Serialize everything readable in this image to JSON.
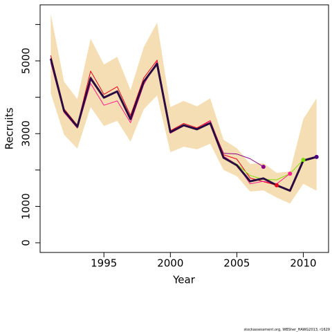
{
  "chart_data": {
    "type": "line",
    "x_label": "Year",
    "y_label": "Recruits",
    "caption": "stockassessment.org, WBSher_HAWG2013, r1629",
    "x": [
      1991,
      1992,
      1993,
      1994,
      1995,
      1996,
      1997,
      1998,
      1999,
      2000,
      2001,
      2002,
      2003,
      2004,
      2005,
      2006,
      2007,
      2008,
      2009,
      2010,
      2011
    ],
    "ci_color": "#f5deb3",
    "ci_upper": [
      6290,
      4430,
      3950,
      5610,
      4900,
      5110,
      4200,
      5380,
      6050,
      3730,
      3900,
      3750,
      3970,
      2830,
      2600,
      2170,
      2190,
      1920,
      1960,
      3400,
      3970
    ],
    "ci_lower": [
      4110,
      2970,
      2590,
      3730,
      3210,
      3350,
      2780,
      3670,
      4050,
      2490,
      2640,
      2570,
      2720,
      2000,
      1830,
      1410,
      1440,
      1240,
      1080,
      1620,
      1430
    ],
    "series": [
      {
        "color": "#8b008b",
        "width": 1,
        "values": [
          5080,
          3640,
          3200,
          4560,
          4000,
          4180,
          3410,
          4450,
          4940,
          3050,
          3240,
          3130,
          3310,
          2460,
          2440,
          2310,
          2090,
          null,
          null,
          null,
          null
        ]
      },
      {
        "color": "#e8001c",
        "width": 1,
        "values": [
          5150,
          3680,
          3230,
          4720,
          4080,
          4290,
          3500,
          4530,
          5020,
          3080,
          3280,
          3160,
          3360,
          2420,
          2300,
          1780,
          1680,
          1580,
          null,
          null,
          null
        ]
      },
      {
        "color": "#ff1e8c",
        "width": 1,
        "values": [
          4950,
          3580,
          3150,
          4380,
          3780,
          3900,
          3300,
          4350,
          4980,
          3010,
          3210,
          3120,
          3350,
          2380,
          2150,
          1620,
          1690,
          1620,
          1900,
          null,
          null
        ]
      },
      {
        "color": "#7fdd00",
        "width": 1,
        "values": [
          5050,
          3620,
          3190,
          4510,
          3980,
          4150,
          3390,
          4420,
          4910,
          3030,
          3220,
          3110,
          3280,
          2350,
          2160,
          1850,
          1740,
          1730,
          1900,
          2280,
          null
        ]
      },
      {
        "color": "#2a0a40",
        "width": 3,
        "values": [
          5060,
          3630,
          3190,
          4520,
          3990,
          4160,
          3400,
          4430,
          4920,
          3040,
          3230,
          3120,
          3290,
          2340,
          2130,
          1690,
          1770,
          1580,
          1430,
          2260,
          2360
        ]
      }
    ],
    "end_colors": [
      "#8b008b",
      "#e8001c",
      "#ff1e8c",
      "#7fdd00",
      "#4b0082"
    ],
    "xlim": [
      1990.2,
      2011.9
    ],
    "ylim": [
      -266,
      6540
    ],
    "xticks": [
      1995,
      2000,
      2005,
      2010
    ],
    "yticks": [
      0,
      1000,
      3000,
      5000
    ],
    "yticks_unlabeled": [
      2000,
      4000,
      6000
    ]
  }
}
